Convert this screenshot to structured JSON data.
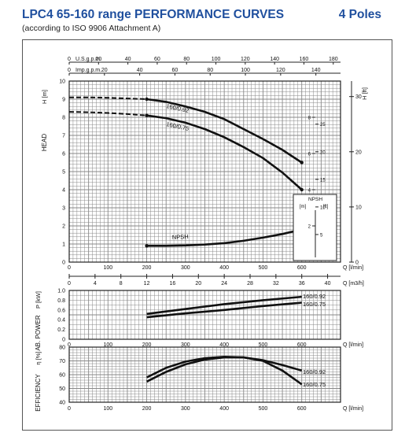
{
  "header": {
    "title": "LPC4 65-160 range PERFORMANCE CURVES",
    "subtitle": "(according to ISO 9906 Attachment A)",
    "poles": "4 Poles"
  },
  "chart_data": [
    {
      "type": "line",
      "id": "head",
      "ylabel": "HEAD",
      "ylabel_left_unit": "H [m]",
      "ylabel_right_unit": "H [ft]",
      "xlabel": "Q [l/min]",
      "xlim": [
        0,
        700
      ],
      "ylim": [
        0,
        10
      ],
      "x_ticks": [
        "0",
        "100",
        "200",
        "300",
        "400",
        "500",
        "600"
      ],
      "y_ticks": [
        "0",
        "1",
        "2",
        "3",
        "4",
        "5",
        "6",
        "7",
        "8",
        "9",
        "10"
      ],
      "right_ticks": [
        "0",
        "10",
        "20",
        "30"
      ],
      "top_axis_usgpm": {
        "label": "U.S.g.p.m.",
        "ticks": [
          "0",
          "20",
          "40",
          "60",
          "80",
          "100",
          "120",
          "140",
          "160",
          "180"
        ]
      },
      "top_axis_impgpm": {
        "label": "Imp.g.p.m.",
        "ticks": [
          "0",
          "20",
          "40",
          "60",
          "80",
          "100",
          "120",
          "140"
        ]
      },
      "bottom_axis_m3h": {
        "label": "Q [m3/h]",
        "ticks": [
          "0",
          "4",
          "8",
          "12",
          "16",
          "20",
          "24",
          "28",
          "32",
          "36",
          "40"
        ]
      },
      "series": [
        {
          "name": "160/0.92",
          "x": [
            200,
            250,
            300,
            350,
            400,
            450,
            500,
            550,
            600
          ],
          "y": [
            9.0,
            8.85,
            8.6,
            8.3,
            7.9,
            7.35,
            6.8,
            6.2,
            5.5
          ],
          "dashed_x": [
            0,
            50,
            100,
            150,
            200
          ],
          "dashed_y": [
            9.1,
            9.1,
            9.08,
            9.04,
            9.0
          ]
        },
        {
          "name": "160/0.75",
          "x": [
            200,
            250,
            300,
            350,
            400,
            450,
            500,
            550,
            600
          ],
          "y": [
            8.1,
            7.95,
            7.7,
            7.35,
            6.9,
            6.35,
            5.75,
            4.95,
            4.0
          ],
          "dashed_x": [
            0,
            50,
            100,
            150,
            200
          ],
          "dashed_y": [
            8.3,
            8.28,
            8.24,
            8.18,
            8.1
          ]
        },
        {
          "name": "NPSH",
          "x": [
            200,
            250,
            300,
            350,
            400,
            450,
            500,
            550,
            600
          ],
          "y": [
            0.9,
            0.9,
            0.92,
            0.97,
            1.05,
            1.18,
            1.35,
            1.55,
            1.8
          ]
        }
      ],
      "npsh_box": {
        "title": "NPSH",
        "left_unit": "[m]",
        "right_unit": "[ft]",
        "left_ticks": [
          "2",
          "4",
          "6",
          "8"
        ],
        "right_ticks": [
          "5",
          "10",
          "15",
          "20",
          "25"
        ]
      }
    },
    {
      "type": "line",
      "id": "power",
      "ylabel": "AB. POWER",
      "ylabel_unit": "P [kW]",
      "xlabel": "Q [l/min]",
      "xlim": [
        0,
        700
      ],
      "ylim": [
        0,
        1.0
      ],
      "x_ticks": [
        "0",
        "100",
        "200",
        "300",
        "400",
        "500",
        "600"
      ],
      "y_ticks": [
        "0",
        "0.2",
        "0.4",
        "0.6",
        "0.8",
        "1.0"
      ],
      "series": [
        {
          "name": "160/0.92",
          "x": [
            200,
            300,
            400,
            500,
            600
          ],
          "y": [
            0.52,
            0.62,
            0.72,
            0.8,
            0.87
          ]
        },
        {
          "name": "160/0.75",
          "x": [
            200,
            300,
            400,
            500,
            600
          ],
          "y": [
            0.45,
            0.53,
            0.6,
            0.68,
            0.75
          ]
        }
      ]
    },
    {
      "type": "line",
      "id": "efficiency",
      "ylabel": "EFFICIENCY",
      "ylabel_unit": "η [%]",
      "xlabel": "Q [l/min]",
      "xlim": [
        0,
        700
      ],
      "ylim": [
        40,
        80
      ],
      "x_ticks": [
        "0",
        "100",
        "200",
        "300",
        "400",
        "500",
        "600"
      ],
      "y_ticks": [
        "40",
        "50",
        "60",
        "70",
        "80"
      ],
      "series": [
        {
          "name": "160/0.92",
          "x": [
            200,
            250,
            300,
            350,
            400,
            450,
            500,
            550,
            600
          ],
          "y": [
            58,
            65,
            69.5,
            72,
            73,
            72.5,
            70.5,
            67,
            63
          ]
        },
        {
          "name": "160/0.75",
          "x": [
            200,
            250,
            300,
            350,
            400,
            450,
            500,
            550,
            600
          ],
          "y": [
            55,
            62,
            67.5,
            71,
            72.5,
            72.5,
            70,
            63,
            53
          ]
        }
      ]
    }
  ]
}
